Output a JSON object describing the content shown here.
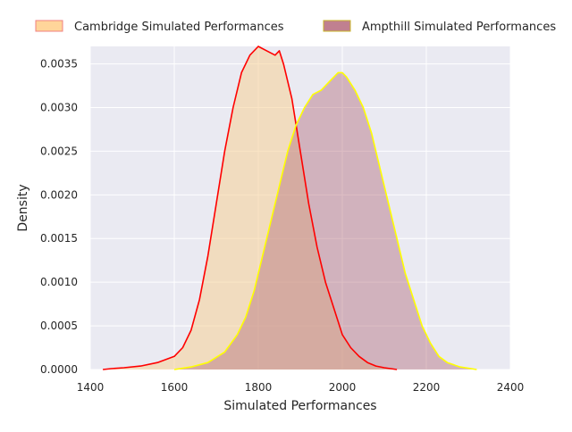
{
  "chart_data": {
    "type": "area",
    "title": "",
    "xlabel": "Simulated Performances",
    "ylabel": "Density",
    "xlim": [
      1400,
      2400
    ],
    "ylim": [
      0,
      0.0037
    ],
    "grid": true,
    "legend_position": "top",
    "x_ticks": [
      1400,
      1600,
      1800,
      2000,
      2200,
      2400
    ],
    "x_tick_labels": [
      "1400",
      "1600",
      "1800",
      "2000",
      "2200",
      "2400"
    ],
    "y_ticks": [
      0,
      0.0005,
      0.001,
      0.0015,
      0.002,
      0.0025,
      0.003,
      0.0035
    ],
    "y_tick_labels": [
      "0.0000",
      "0.0005",
      "0.0010",
      "0.0015",
      "0.0020",
      "0.0025",
      "0.0030",
      "0.0035"
    ],
    "series": [
      {
        "name": "Cambridge Simulated Performances",
        "fill_color": "#F5CF96",
        "line_color": "#FF0000",
        "legend_fill": "#FFD59A",
        "legend_edge": "#F08080",
        "points": [
          [
            1430,
            0.0
          ],
          [
            1450,
            1e-05
          ],
          [
            1480,
            2e-05
          ],
          [
            1520,
            4e-05
          ],
          [
            1560,
            8e-05
          ],
          [
            1600,
            0.00015
          ],
          [
            1620,
            0.00025
          ],
          [
            1640,
            0.00045
          ],
          [
            1660,
            0.0008
          ],
          [
            1680,
            0.0013
          ],
          [
            1700,
            0.0019
          ],
          [
            1720,
            0.0025
          ],
          [
            1740,
            0.003
          ],
          [
            1760,
            0.0034
          ],
          [
            1780,
            0.0036
          ],
          [
            1800,
            0.0037
          ],
          [
            1820,
            0.00365
          ],
          [
            1840,
            0.0036
          ],
          [
            1850,
            0.00365
          ],
          [
            1860,
            0.0035
          ],
          [
            1880,
            0.0031
          ],
          [
            1900,
            0.0025
          ],
          [
            1920,
            0.0019
          ],
          [
            1940,
            0.0014
          ],
          [
            1960,
            0.001
          ],
          [
            1980,
            0.0007
          ],
          [
            2000,
            0.0004
          ],
          [
            2020,
            0.00025
          ],
          [
            2040,
            0.00015
          ],
          [
            2060,
            8e-05
          ],
          [
            2080,
            4e-05
          ],
          [
            2100,
            2e-05
          ],
          [
            2130,
            0.0
          ]
        ]
      },
      {
        "name": "Ampthill Simulated Performances",
        "fill_color": "#B46E7D",
        "line_color": "#FFFF00",
        "legend_fill": "#C08090",
        "legend_edge": "#C8B428",
        "points": [
          [
            1600,
            0.0
          ],
          [
            1640,
            3e-05
          ],
          [
            1680,
            8e-05
          ],
          [
            1720,
            0.0002
          ],
          [
            1750,
            0.0004
          ],
          [
            1770,
            0.0006
          ],
          [
            1790,
            0.0009
          ],
          [
            1810,
            0.0013
          ],
          [
            1830,
            0.0017
          ],
          [
            1850,
            0.0021
          ],
          [
            1870,
            0.0025
          ],
          [
            1890,
            0.0028
          ],
          [
            1910,
            0.003
          ],
          [
            1930,
            0.00315
          ],
          [
            1950,
            0.0032
          ],
          [
            1970,
            0.0033
          ],
          [
            1990,
            0.0034
          ],
          [
            2000,
            0.0034
          ],
          [
            2010,
            0.00335
          ],
          [
            2030,
            0.0032
          ],
          [
            2050,
            0.003
          ],
          [
            2070,
            0.0027
          ],
          [
            2090,
            0.0023
          ],
          [
            2110,
            0.0019
          ],
          [
            2130,
            0.0015
          ],
          [
            2150,
            0.0011
          ],
          [
            2170,
            0.0008
          ],
          [
            2190,
            0.0005
          ],
          [
            2210,
            0.0003
          ],
          [
            2230,
            0.00015
          ],
          [
            2250,
            8e-05
          ],
          [
            2280,
            3e-05
          ],
          [
            2320,
            0.0
          ]
        ]
      }
    ]
  }
}
